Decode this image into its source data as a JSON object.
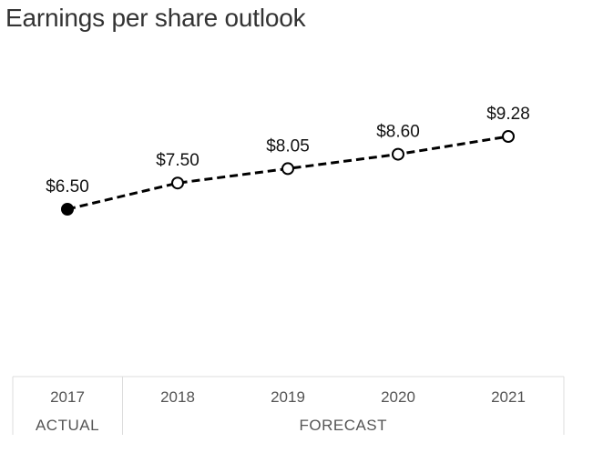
{
  "title": "Earnings per share outlook",
  "colors": {
    "line": "#000000",
    "actual_marker": "#000000",
    "forecast_marker_fill": "#ffffff",
    "table_border": "#dcdcdc",
    "axis_text": "#555555"
  },
  "chart_data": {
    "type": "line",
    "title": "Earnings per share outlook",
    "categories": [
      "2017",
      "2018",
      "2019",
      "2020",
      "2021"
    ],
    "values": [
      6.5,
      7.5,
      8.05,
      8.6,
      9.28
    ],
    "data_labels": [
      "$6.50",
      "$7.50",
      "$8.05",
      "$8.60",
      "$9.28"
    ],
    "marker_styles": [
      "filled",
      "hollow",
      "hollow",
      "hollow",
      "hollow"
    ],
    "line_style": "dashed",
    "groups": [
      {
        "label": "ACTUAL",
        "categories": [
          "2017"
        ]
      },
      {
        "label": "FORECAST",
        "categories": [
          "2018",
          "2019",
          "2020",
          "2021"
        ]
      }
    ],
    "xlabel": "",
    "ylabel": "",
    "grid": false,
    "legend": "none"
  }
}
